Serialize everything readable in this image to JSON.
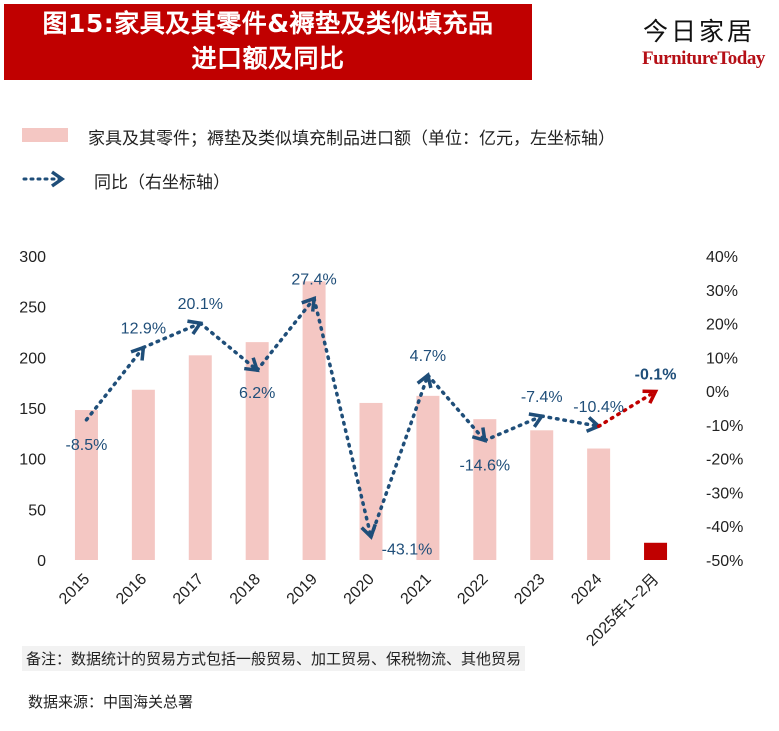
{
  "title": {
    "line1": "图15:家具及其零件&褥垫及类似填充品",
    "line2": "进口额及同比"
  },
  "brand": {
    "cn": "今日家居",
    "en": "FurnitureToday",
    "color": "#b50f16"
  },
  "legend": {
    "bar_label": "家具及其零件；褥垫及类似填充制品进口额（单位：亿元，左坐标轴）",
    "line_label": "同比（右坐标轴）"
  },
  "note": "备注：数据统计的贸易方式包括一般贸易、加工贸易、保税物流、其他贸易",
  "source": "数据来源：中国海关总署",
  "colors": {
    "title_bg": "#c00000",
    "bar": "#f4c7c3",
    "bar_highlight": "#c00000",
    "line": "#1f4e79",
    "line_last": "#c00000"
  },
  "chart_data": {
    "type": "bar",
    "categories": [
      "2015",
      "2016",
      "2017",
      "2018",
      "2019",
      "2020",
      "2021",
      "2022",
      "2023",
      "2024",
      "2025年1~2月"
    ],
    "series": [
      {
        "name": "家具及其零件；褥垫及类似填充制品进口额（单位：亿元，左坐标轴）",
        "type": "bar",
        "axis": "left",
        "values": [
          148,
          168,
          202,
          215,
          275,
          155,
          162,
          139,
          128,
          110,
          17
        ]
      },
      {
        "name": "同比（右坐标轴）",
        "type": "line",
        "axis": "right",
        "values": [
          -8.5,
          12.9,
          20.1,
          6.2,
          27.4,
          -43.1,
          4.7,
          -14.6,
          -7.4,
          -10.4,
          -0.1
        ],
        "labels": [
          "-8.5%",
          "12.9%",
          "20.1%",
          "6.2%",
          "27.4%",
          "-43.1%",
          "4.7%",
          "-14.6%",
          "-7.4%",
          "-10.4%",
          "-0.1%"
        ]
      }
    ],
    "y_left": {
      "range": [
        0,
        300
      ],
      "ticks": [
        "0",
        "50",
        "100",
        "150",
        "200",
        "250",
        "300"
      ]
    },
    "y_right": {
      "range": [
        -50,
        40
      ],
      "ticks": [
        "-50%",
        "-40%",
        "-30%",
        "-20%",
        "-10%",
        "0%",
        "10%",
        "20%",
        "30%",
        "40%"
      ]
    },
    "grid": false,
    "legend_position": "top-left"
  }
}
